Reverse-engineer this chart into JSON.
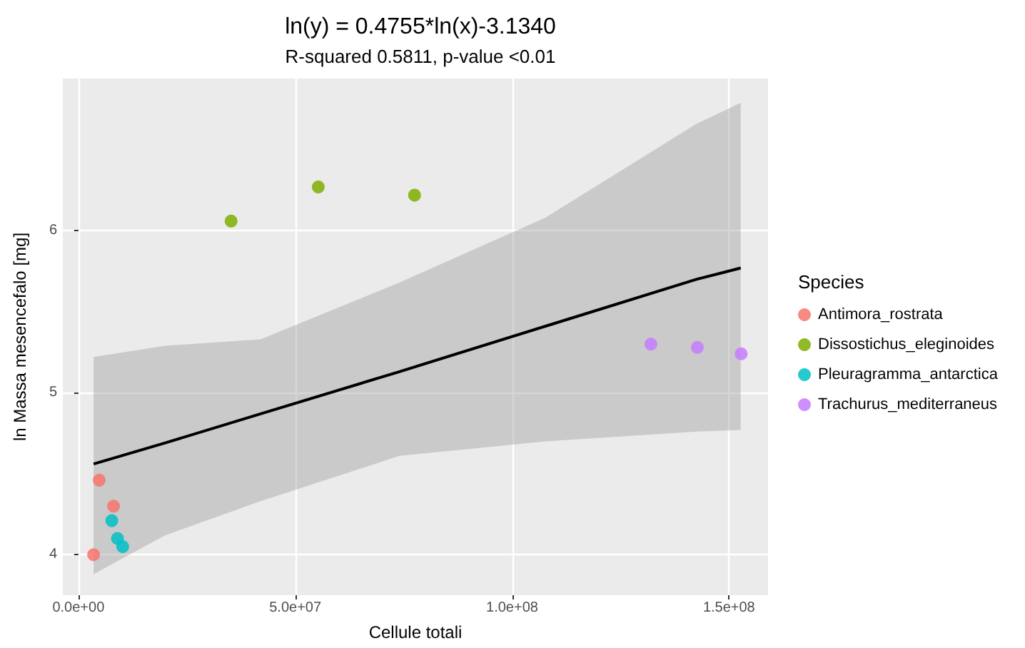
{
  "chart_data": {
    "type": "scatter",
    "title": "ln(y) = 0.4755*ln(x)-3.1340",
    "subtitle": "R-squared 0.5811, p-value <0.01",
    "xlabel": "Cellule totali",
    "ylabel": "ln Massa mesencefalo [mg]",
    "legend_title": "Species",
    "legend": "right",
    "grid": true,
    "marker": "circle",
    "xlim": [
      -3600000,
      159000000
    ],
    "xticks": [
      {
        "value": 0,
        "label": "0.0e+00"
      },
      {
        "value": 50000000,
        "label": "5.0e+07"
      },
      {
        "value": 100000000,
        "label": "1.0e+08"
      },
      {
        "value": 150000000,
        "label": "1.5e+08"
      }
    ],
    "ylim": [
      3.75,
      6.94
    ],
    "yticks": [
      4,
      5,
      6
    ],
    "series": [
      {
        "name": "Antimora_rostrata",
        "color": "#f8766d",
        "x": [
          3500000,
          4800000,
          8100000
        ],
        "values": [
          4.0,
          4.46,
          4.3
        ]
      },
      {
        "name": "Dissostichus_eleginoides",
        "color": "#7cae00",
        "x": [
          35200000,
          55300000,
          77500000
        ],
        "values": [
          6.06,
          6.27,
          6.22
        ]
      },
      {
        "name": "Pleuragramma_antarctica",
        "color": "#00bfc4",
        "x": [
          7700000,
          9000000,
          10200000
        ],
        "values": [
          4.21,
          4.1,
          4.05
        ]
      },
      {
        "name": "Trachurus_mediterraneus",
        "color": "#c77cff",
        "x": [
          132000000,
          142700000,
          152800000
        ],
        "values": [
          5.3,
          5.28,
          5.24
        ]
      },
      {
        "type": "line",
        "marker": "none",
        "color": "#000000",
        "x": [
          3500000,
          20000000,
          42000000,
          74000000,
          107600000,
          142500000,
          152700000
        ],
        "values": [
          4.56,
          4.69,
          4.87,
          5.13,
          5.41,
          5.7,
          5.77
        ],
        "lower": [
          3.88,
          4.12,
          4.33,
          4.61,
          4.7,
          4.76,
          4.77
        ],
        "upper": [
          5.22,
          5.29,
          5.33,
          5.68,
          6.08,
          6.66,
          6.79
        ]
      }
    ]
  }
}
